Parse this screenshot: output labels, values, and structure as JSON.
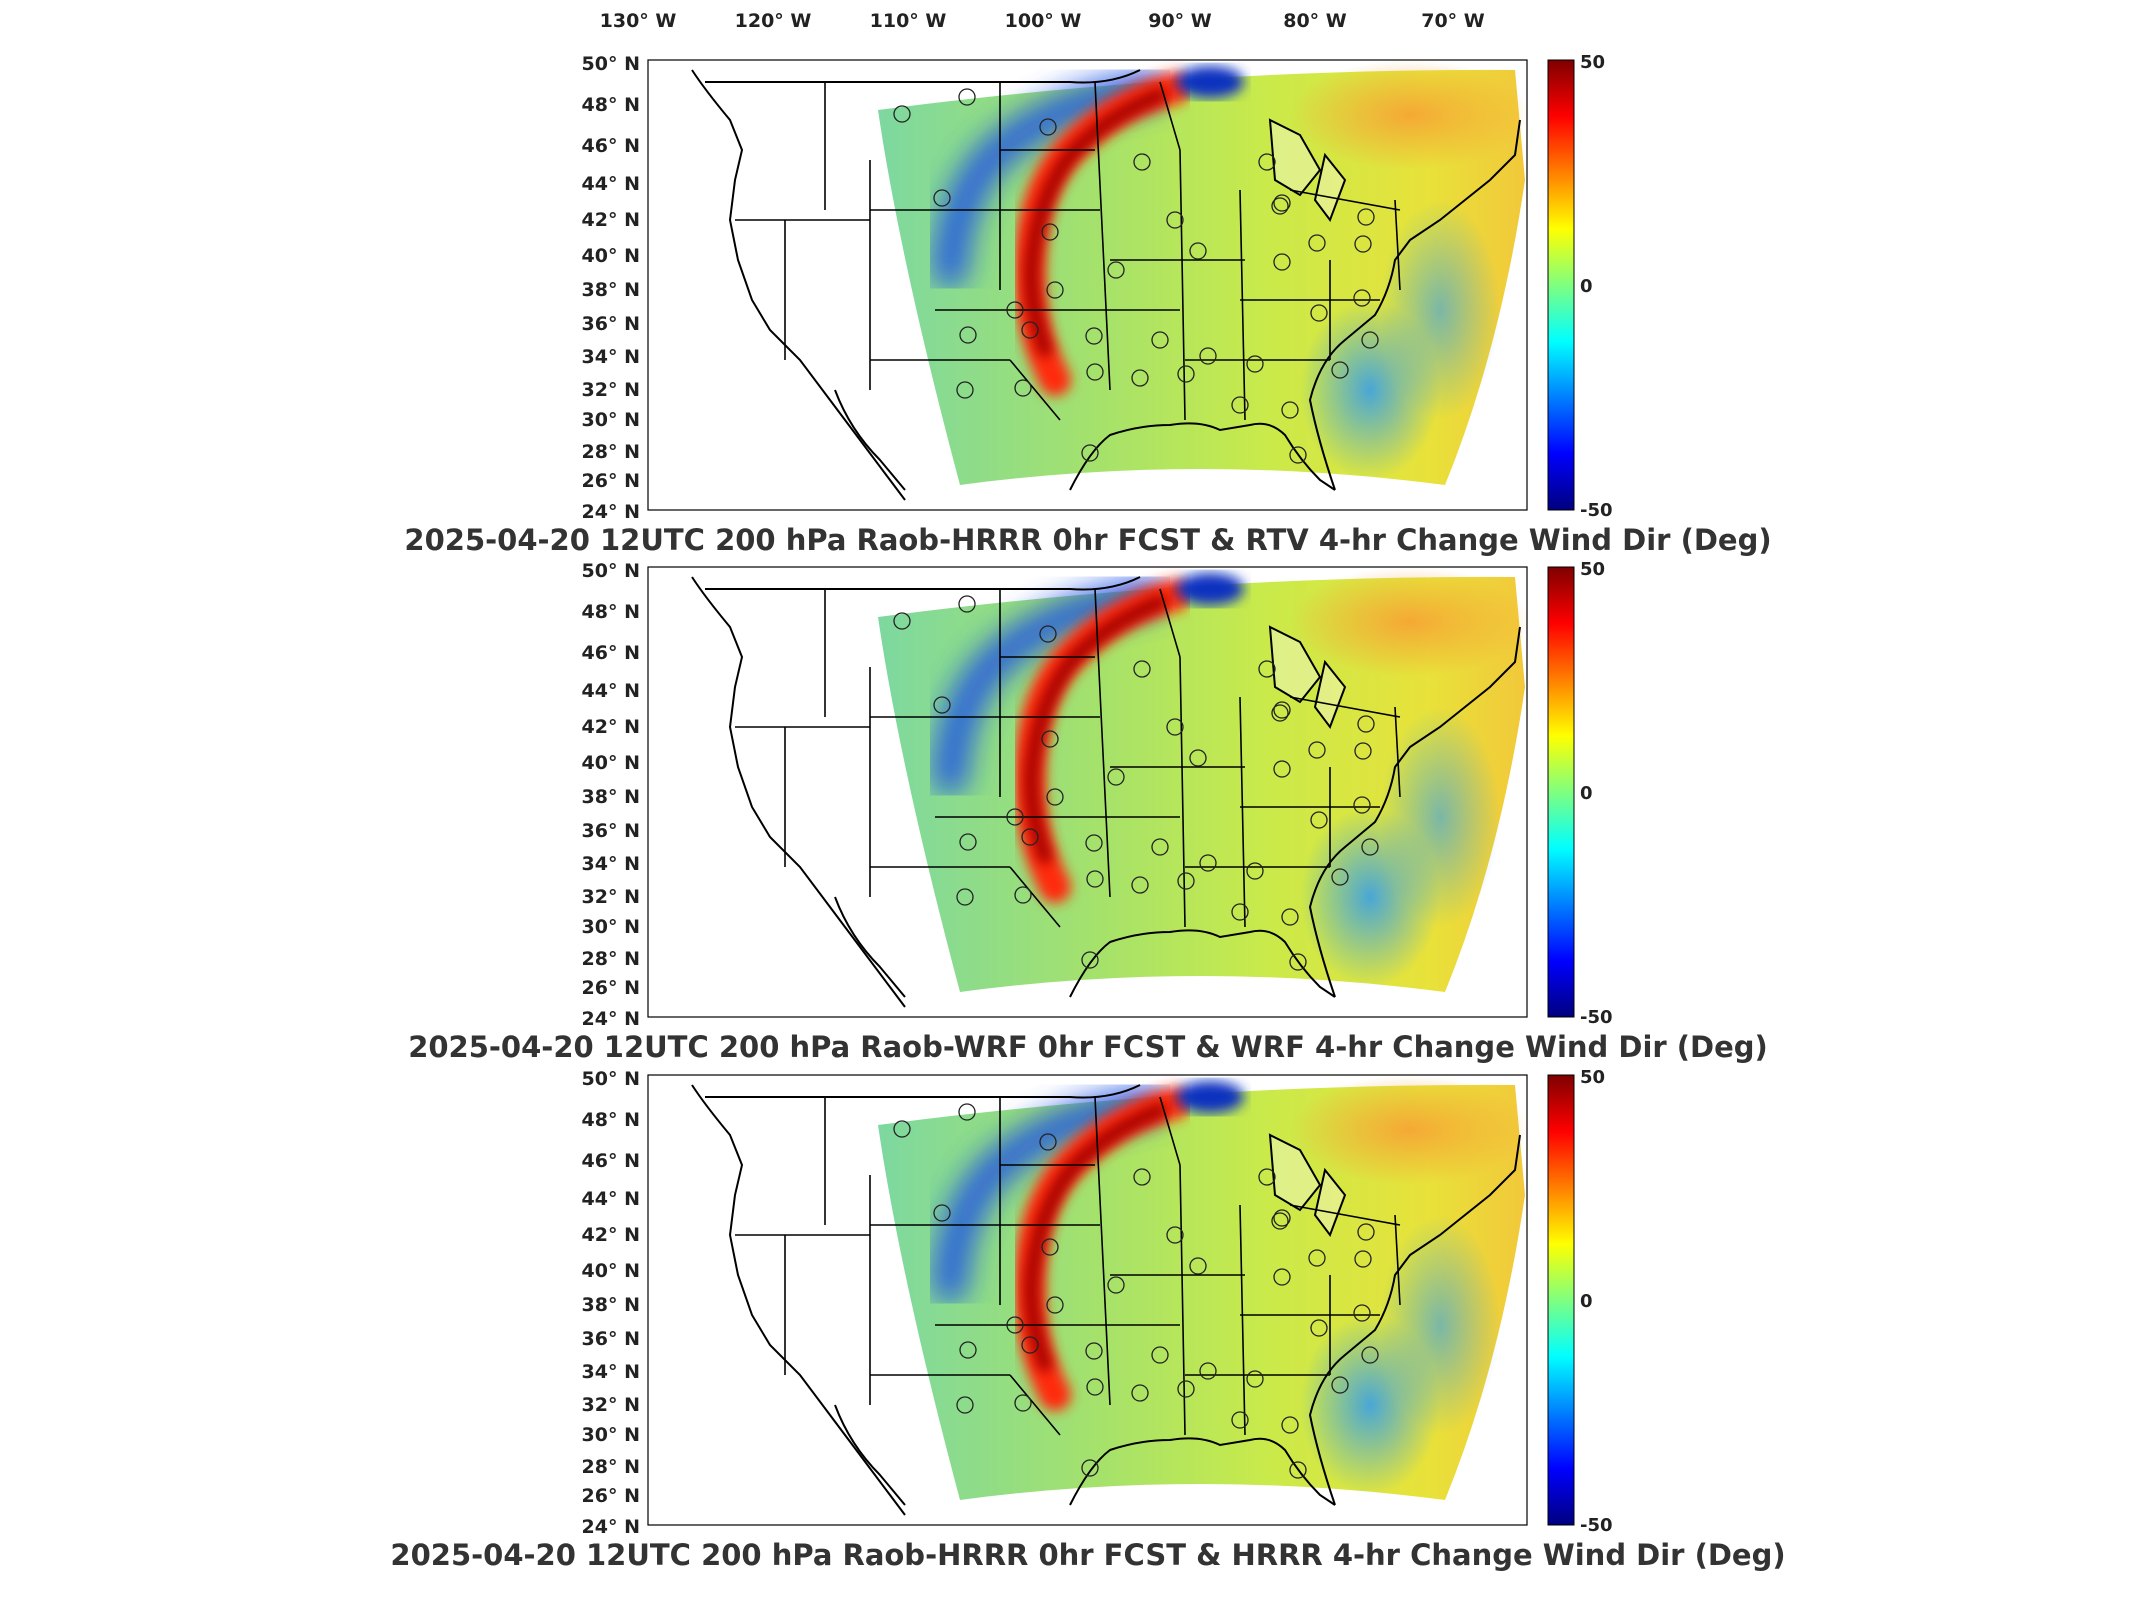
{
  "longitude_labels": [
    "130° W",
    "120° W",
    "110° W",
    "100° W",
    "90° W",
    "80° W",
    "70° W"
  ],
  "latitude_labels": [
    "50° N",
    "48° N",
    "46° N",
    "44° N",
    "42° N",
    "40° N",
    "38° N",
    "36° N",
    "34° N",
    "32° N",
    "30° N",
    "28° N",
    "26° N",
    "24° N"
  ],
  "colorbar": {
    "max_label": "50",
    "mid_label": "0",
    "min_label": "-50",
    "colors": [
      "#00007f",
      "#0000ff",
      "#007fff",
      "#00ffff",
      "#7fff7f",
      "#ffff00",
      "#ff7f00",
      "#ff0000",
      "#7f0000"
    ]
  },
  "panels": [
    {
      "title": "2025-04-20 12UTC 200 hPa Raob-HRRR 0hr FCST & RTV 4-hr Change Wind Dir (Deg)"
    },
    {
      "title": "2025-04-20 12UTC 200 hPa Raob-WRF 0hr FCST & WRF 4-hr Change Wind Dir (Deg)"
    },
    {
      "title": "2025-04-20 12UTC 200 hPa Raob-HRRR 0hr FCST & HRRR 4-hr Change Wind Dir (Deg)"
    }
  ]
}
